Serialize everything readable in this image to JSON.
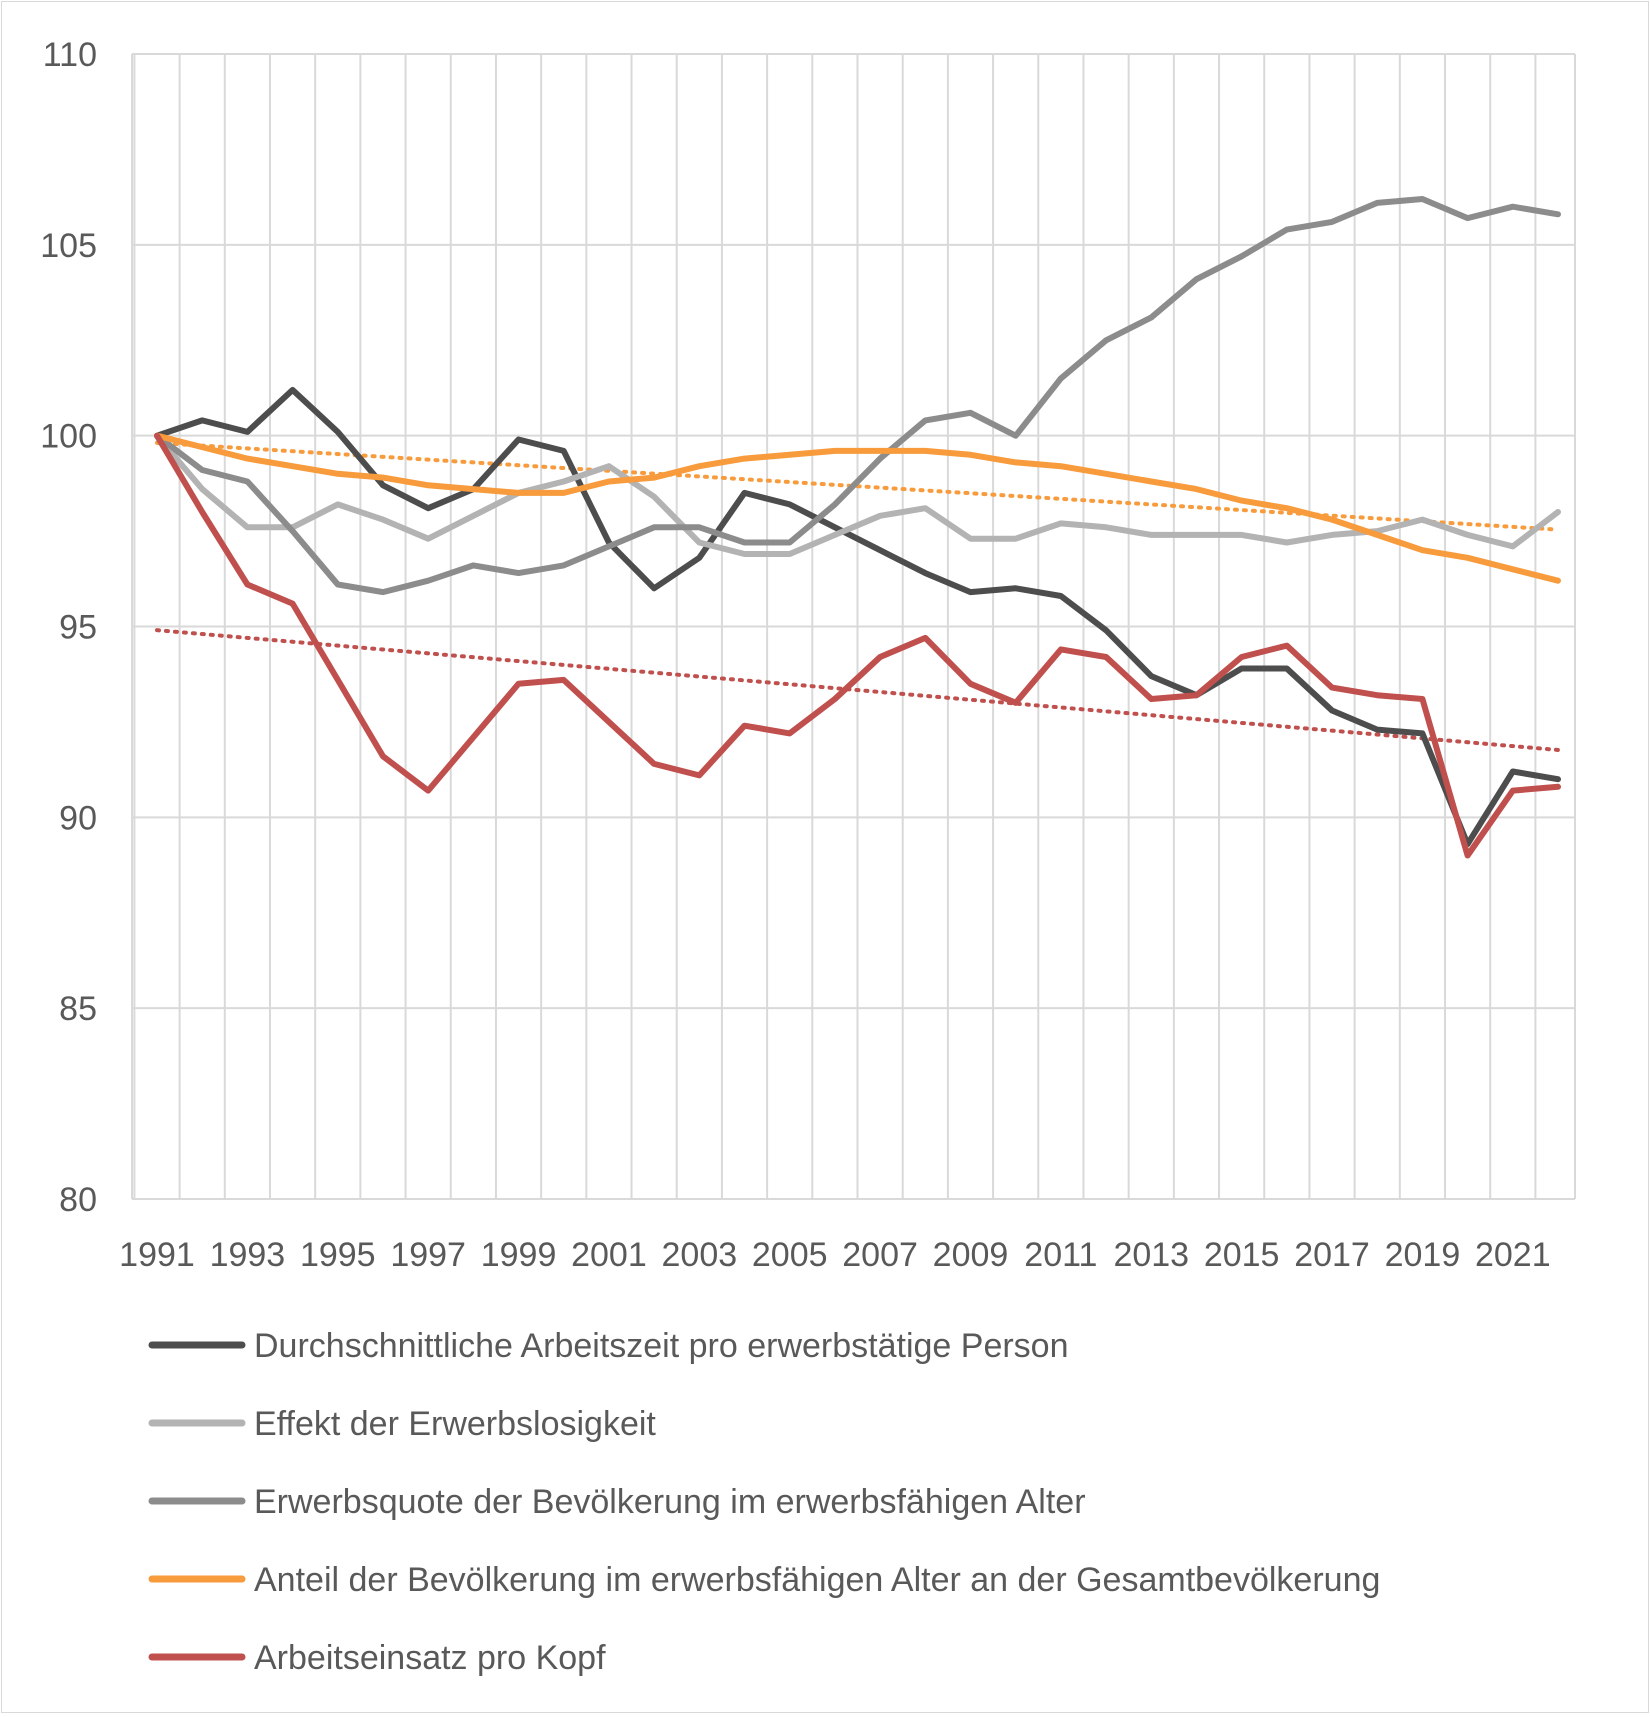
{
  "chart_data": {
    "type": "line",
    "title": "",
    "xlabel": "",
    "ylabel": "",
    "ylim": [
      80,
      110
    ],
    "yticks": [
      80,
      85,
      90,
      95,
      100,
      105,
      110
    ],
    "x": [
      1991,
      1992,
      1993,
      1994,
      1995,
      1996,
      1997,
      1998,
      1999,
      2000,
      2001,
      2002,
      2003,
      2004,
      2005,
      2006,
      2007,
      2008,
      2009,
      2010,
      2011,
      2012,
      2013,
      2014,
      2015,
      2016,
      2017,
      2018,
      2019,
      2020,
      2021,
      2022
    ],
    "xticklabels": [
      "1991",
      "1993",
      "1995",
      "1997",
      "1999",
      "2001",
      "2003",
      "2005",
      "2007",
      "2009",
      "2011",
      "2013",
      "2015",
      "2017",
      "2019",
      "2021"
    ],
    "grid": true,
    "legend_position": "bottom",
    "series": [
      {
        "name": "Durchschnittliche Arbeitszeit pro erwerbstätige Person",
        "color": "#4d4d4d",
        "values": [
          100.0,
          100.4,
          100.1,
          101.2,
          100.1,
          98.7,
          98.1,
          98.6,
          99.9,
          99.6,
          97.2,
          96.0,
          96.8,
          98.5,
          98.2,
          97.6,
          97.0,
          96.4,
          95.9,
          96.0,
          95.8,
          94.9,
          93.7,
          93.2,
          93.9,
          93.9,
          92.8,
          92.3,
          92.2,
          89.3,
          91.2,
          91.0
        ]
      },
      {
        "name": "Effekt der Erwerbslosigkeit",
        "color": "#b3b3b3",
        "values": [
          100.0,
          98.6,
          97.6,
          97.6,
          98.2,
          97.8,
          97.3,
          97.9,
          98.5,
          98.8,
          99.2,
          98.4,
          97.2,
          96.9,
          96.9,
          97.4,
          97.9,
          98.1,
          97.3,
          97.3,
          97.7,
          97.6,
          97.4,
          97.4,
          97.4,
          97.2,
          97.4,
          97.5,
          97.8,
          97.4,
          97.1,
          98.0
        ]
      },
      {
        "name": "Erwerbsquote der Bevölkerung im erwerbsfähigen Alter",
        "color": "#8c8c8c",
        "values": [
          100.0,
          99.1,
          98.8,
          97.5,
          96.1,
          95.9,
          96.2,
          96.6,
          96.4,
          96.6,
          97.1,
          97.6,
          97.6,
          97.2,
          97.2,
          98.2,
          99.4,
          100.4,
          100.6,
          100.0,
          101.5,
          102.5,
          103.1,
          104.1,
          104.7,
          105.4,
          105.6,
          106.1,
          106.2,
          105.7,
          106.0,
          105.8
        ]
      },
      {
        "name": "Anteil der Bevölkerung im erwerbsfähigen Alter an der Gesamtbevölkerung",
        "color": "#f79b3c",
        "values": [
          100.0,
          99.7,
          99.4,
          99.2,
          99.0,
          98.9,
          98.7,
          98.6,
          98.5,
          98.5,
          98.8,
          98.9,
          99.2,
          99.4,
          99.5,
          99.6,
          99.6,
          99.6,
          99.5,
          99.3,
          99.2,
          99.0,
          98.8,
          98.6,
          98.3,
          98.1,
          97.8,
          97.4,
          97.0,
          96.8,
          96.5,
          96.2
        ]
      },
      {
        "name": "Arbeitseinsatz pro Kopf",
        "color": "#c0504d",
        "values": [
          100.0,
          98.0,
          96.1,
          95.6,
          93.6,
          91.6,
          90.7,
          92.1,
          93.5,
          93.6,
          92.5,
          91.4,
          91.1,
          92.4,
          92.2,
          93.1,
          94.2,
          94.7,
          93.5,
          93.0,
          94.4,
          94.2,
          93.1,
          93.2,
          94.2,
          94.5,
          93.4,
          93.2,
          93.1,
          89.0,
          90.7,
          90.8
        ]
      }
    ],
    "trendlines": [
      {
        "series": "Anteil der Bevölkerung im erwerbsfähigen Alter an der Gesamtbevölkerung",
        "type": "linear",
        "style": "dotted",
        "color": "#f79b3c"
      },
      {
        "series": "Arbeitseinsatz pro Kopf",
        "type": "linear",
        "style": "dotted",
        "color": "#c0504d"
      }
    ]
  }
}
